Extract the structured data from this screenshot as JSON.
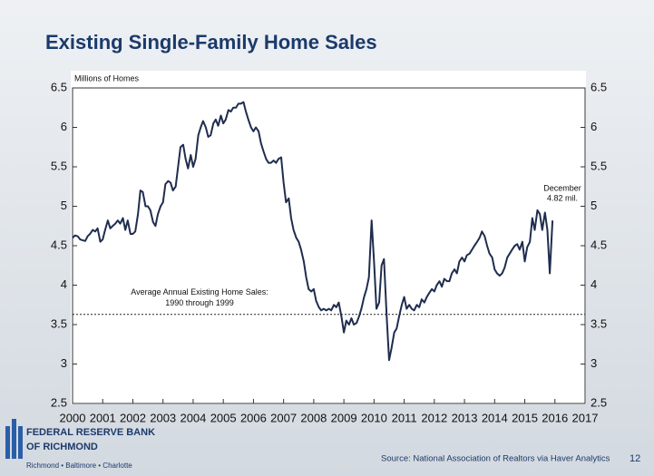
{
  "chart_data": {
    "type": "line",
    "title": "Existing Single-Family Home Sales",
    "y_label": "Millions of Homes",
    "x": [
      2000,
      2000.08,
      2000.17,
      2000.25,
      2000.33,
      2000.42,
      2000.5,
      2000.58,
      2000.67,
      2000.75,
      2000.83,
      2000.92,
      2001,
      2001.08,
      2001.17,
      2001.25,
      2001.33,
      2001.42,
      2001.5,
      2001.58,
      2001.67,
      2001.75,
      2001.83,
      2001.92,
      2002,
      2002.08,
      2002.17,
      2002.25,
      2002.33,
      2002.42,
      2002.5,
      2002.58,
      2002.67,
      2002.75,
      2002.83,
      2002.92,
      2003,
      2003.08,
      2003.17,
      2003.25,
      2003.33,
      2003.42,
      2003.5,
      2003.58,
      2003.67,
      2003.75,
      2003.83,
      2003.92,
      2004,
      2004.08,
      2004.17,
      2004.25,
      2004.33,
      2004.42,
      2004.5,
      2004.58,
      2004.67,
      2004.75,
      2004.83,
      2004.92,
      2005,
      2005.08,
      2005.17,
      2005.25,
      2005.33,
      2005.42,
      2005.5,
      2005.58,
      2005.67,
      2005.75,
      2005.83,
      2005.92,
      2006,
      2006.08,
      2006.17,
      2006.25,
      2006.33,
      2006.42,
      2006.5,
      2006.58,
      2006.67,
      2006.75,
      2006.83,
      2006.92,
      2007,
      2007.08,
      2007.17,
      2007.25,
      2007.33,
      2007.42,
      2007.5,
      2007.58,
      2007.67,
      2007.75,
      2007.83,
      2007.92,
      2008,
      2008.08,
      2008.17,
      2008.25,
      2008.33,
      2008.42,
      2008.5,
      2008.58,
      2008.67,
      2008.75,
      2008.83,
      2008.92,
      2009,
      2009.08,
      2009.17,
      2009.25,
      2009.33,
      2009.42,
      2009.5,
      2009.58,
      2009.67,
      2009.75,
      2009.83,
      2009.92,
      2010,
      2010.08,
      2010.17,
      2010.25,
      2010.33,
      2010.42,
      2010.5,
      2010.58,
      2010.67,
      2010.75,
      2010.83,
      2010.92,
      2011,
      2011.08,
      2011.17,
      2011.25,
      2011.33,
      2011.42,
      2011.5,
      2011.58,
      2011.67,
      2011.75,
      2011.83,
      2011.92,
      2012,
      2012.08,
      2012.17,
      2012.25,
      2012.33,
      2012.42,
      2012.5,
      2012.58,
      2012.67,
      2012.75,
      2012.83,
      2012.92,
      2013,
      2013.08,
      2013.17,
      2013.25,
      2013.33,
      2013.42,
      2013.5,
      2013.58,
      2013.67,
      2013.75,
      2013.83,
      2013.92,
      2014,
      2014.08,
      2014.17,
      2014.25,
      2014.33,
      2014.42,
      2014.5,
      2014.58,
      2014.67,
      2014.75,
      2014.83,
      2014.92,
      2015,
      2015.08,
      2015.17,
      2015.25,
      2015.33,
      2015.42,
      2015.5,
      2015.58,
      2015.67,
      2015.75,
      2015.83,
      2015.92
    ],
    "series": [
      {
        "name": "Existing single-family home sales",
        "color": "#1f2d4e",
        "values": [
          4.6,
          4.63,
          4.62,
          4.58,
          4.57,
          4.56,
          4.62,
          4.65,
          4.7,
          4.68,
          4.72,
          4.55,
          4.58,
          4.7,
          4.82,
          4.72,
          4.75,
          4.78,
          4.82,
          4.78,
          4.85,
          4.7,
          4.82,
          4.65,
          4.65,
          4.68,
          4.9,
          5.2,
          5.18,
          5.0,
          5.0,
          4.95,
          4.8,
          4.75,
          4.9,
          5.0,
          5.05,
          5.28,
          5.32,
          5.3,
          5.2,
          5.25,
          5.5,
          5.75,
          5.78,
          5.6,
          5.48,
          5.65,
          5.5,
          5.6,
          5.9,
          6.0,
          6.08,
          6.0,
          5.88,
          5.9,
          6.05,
          6.1,
          6.02,
          6.15,
          6.05,
          6.1,
          6.22,
          6.2,
          6.25,
          6.25,
          6.3,
          6.3,
          6.32,
          6.2,
          6.1,
          6.0,
          5.95,
          6.0,
          5.95,
          5.8,
          5.7,
          5.6,
          5.55,
          5.55,
          5.58,
          5.55,
          5.6,
          5.62,
          5.3,
          5.05,
          5.1,
          4.85,
          4.7,
          4.6,
          4.55,
          4.45,
          4.3,
          4.1,
          3.95,
          3.92,
          3.95,
          3.8,
          3.72,
          3.68,
          3.7,
          3.68,
          3.7,
          3.68,
          3.75,
          3.72,
          3.78,
          3.6,
          3.4,
          3.55,
          3.5,
          3.58,
          3.5,
          3.52,
          3.6,
          3.7,
          3.85,
          3.95,
          4.1,
          4.82,
          4.3,
          3.7,
          3.78,
          4.25,
          4.33,
          3.6,
          3.05,
          3.2,
          3.4,
          3.45,
          3.6,
          3.75,
          3.85,
          3.7,
          3.75,
          3.7,
          3.68,
          3.75,
          3.72,
          3.82,
          3.78,
          3.85,
          3.9,
          3.95,
          3.92,
          4.0,
          4.05,
          3.98,
          4.08,
          4.05,
          4.05,
          4.15,
          4.2,
          4.15,
          4.3,
          4.35,
          4.3,
          4.38,
          4.4,
          4.45,
          4.5,
          4.55,
          4.6,
          4.68,
          4.62,
          4.5,
          4.4,
          4.35,
          4.2,
          4.15,
          4.12,
          4.15,
          4.22,
          4.35,
          4.4,
          4.45,
          4.5,
          4.52,
          4.45,
          4.55,
          4.3,
          4.48,
          4.55,
          4.85,
          4.7,
          4.95,
          4.9,
          4.7,
          4.92,
          4.7,
          4.15,
          4.82
        ]
      }
    ],
    "xlim": [
      2000,
      2017
    ],
    "xticks": [
      2000,
      2001,
      2002,
      2003,
      2004,
      2005,
      2006,
      2007,
      2008,
      2009,
      2010,
      2011,
      2012,
      2013,
      2014,
      2015,
      2016,
      2017
    ],
    "ylim": [
      2.5,
      6.5
    ],
    "yticks": [
      2.5,
      3,
      3.5,
      4,
      4.5,
      5,
      5.5,
      6,
      6.5
    ],
    "y2lim": [
      2.5,
      6.5
    ],
    "y2ticks": [
      2.5,
      3,
      3.5,
      4,
      4.5,
      5,
      5.5,
      6,
      6.5
    ],
    "reference_line": {
      "value": 3.63,
      "label_lines": [
        "Average Annual Existing Home Sales:",
        "1990 through 1999"
      ]
    },
    "annotation": [
      "December",
      "4.82 mil."
    ]
  },
  "footer": {
    "source": "Source: National Association of Realtors via Haver Analytics",
    "page": "12",
    "logo_lines": [
      "FEDERAL RESERVE BANK",
      "OF RICHMOND"
    ],
    "logo_cities": "Richmond • Baltimore • Charlotte"
  }
}
